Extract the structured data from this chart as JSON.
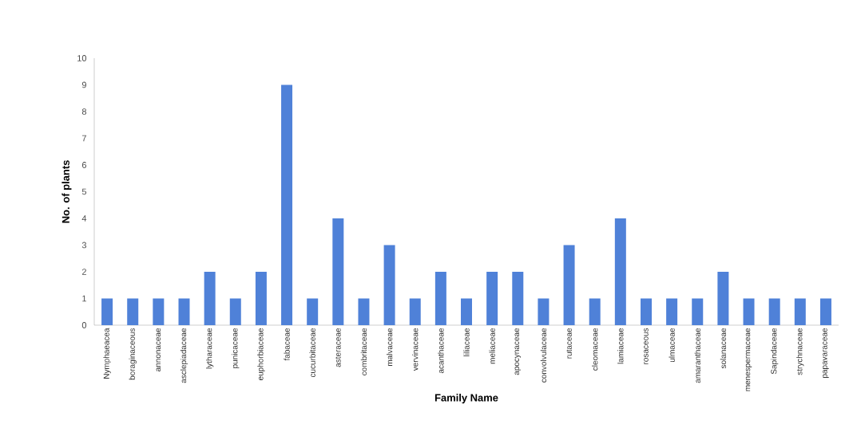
{
  "chart_data": {
    "type": "bar",
    "xlabel": "Family Name",
    "ylabel": "No. of plants",
    "categories": [
      "Nymphaeacea",
      "boraginaceous",
      "annonaceae",
      "asclepiadaceae",
      "lytharaceae",
      "punicaceae",
      "euphorbiaceae",
      "fabaceae",
      "cucurbitaceae",
      "asteraceae",
      "combritaceae",
      "malvaceae",
      "vervinaceae",
      "acanthaceae",
      "liliaceae",
      "meliaceae",
      "apocynaceae",
      "convolvulaceae",
      "rutaceae",
      "cleomaceae",
      "lamiaceae",
      "rosaceous",
      "ulmaceae",
      "amaranthaceae",
      "solanaceae",
      "menespermaceae",
      "Sapindaceae",
      "strychnaceae",
      "papavaraceae"
    ],
    "values": [
      1,
      1,
      1,
      1,
      2,
      1,
      2,
      9,
      1,
      4,
      1,
      3,
      1,
      2,
      1,
      2,
      2,
      1,
      3,
      1,
      4,
      1,
      1,
      1,
      2,
      1,
      1,
      1,
      1
    ],
    "color": "#4f81d8",
    "ylim": [
      0,
      10
    ],
    "yticks": [
      0,
      1,
      2,
      3,
      4,
      5,
      6,
      7,
      8,
      9,
      10
    ],
    "grid": false
  }
}
